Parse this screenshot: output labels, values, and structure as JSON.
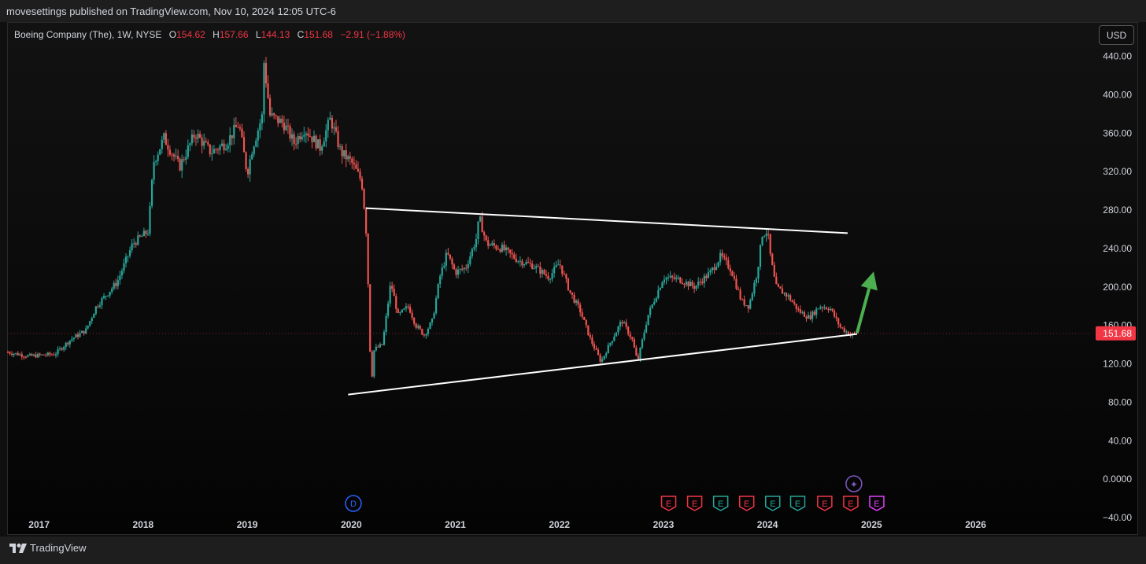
{
  "header": {
    "publish_text": "movesettings published on TradingView.com, Nov 10, 2024 12:05 UTC-6"
  },
  "legend": {
    "symbol": "Boeing Company (The), 1W, NYSE",
    "open_label": "O",
    "open": "154.62",
    "high_label": "H",
    "high": "157.66",
    "low_label": "L",
    "low": "144.13",
    "close_label": "C",
    "close": "151.68",
    "change": "−2.91 (−1.88%)"
  },
  "currency_button": "USD",
  "footer": {
    "brand": "TradingView"
  },
  "colors": {
    "up": "#26a69a",
    "down": "#ef5350",
    "trendline": "#ffffff",
    "arrow": "#4caf50",
    "price_tag": "#f23645"
  },
  "chart_data": {
    "type": "candlestick",
    "symbol": "BA",
    "interval": "1W",
    "last_price": 151.68,
    "last_price_label": "151.68",
    "y_axis": {
      "ticks": [
        440,
        400,
        360,
        320,
        280,
        240,
        200,
        160,
        120,
        80,
        40,
        0,
        -40
      ],
      "tick_labels": [
        "440.00",
        "400.00",
        "360.00",
        "320.00",
        "280.00",
        "240.00",
        "200.00",
        "160.00",
        "120.00",
        "80.00",
        "40.00",
        "0.0000",
        "−40.00"
      ],
      "range": [
        -58,
        474
      ]
    },
    "x_axis": {
      "ticks": [
        2017,
        2018,
        2019,
        2020,
        2021,
        2022,
        2023,
        2024,
        2025,
        2026
      ],
      "tick_labels": [
        "2017",
        "2018",
        "2019",
        "2020",
        "2021",
        "2022",
        "2023",
        "2024",
        "2025",
        "2026"
      ],
      "range": [
        2016.7,
        2027.1
      ]
    },
    "price_path": [
      [
        2016.7,
        132
      ],
      [
        2016.9,
        128
      ],
      [
        2017.15,
        130
      ],
      [
        2017.3,
        145
      ],
      [
        2017.45,
        155
      ],
      [
        2017.55,
        180
      ],
      [
        2017.75,
        205
      ],
      [
        2017.9,
        245
      ],
      [
        2018.05,
        258
      ],
      [
        2018.1,
        330
      ],
      [
        2018.2,
        355
      ],
      [
        2018.35,
        325
      ],
      [
        2018.5,
        360
      ],
      [
        2018.65,
        340
      ],
      [
        2018.8,
        350
      ],
      [
        2018.92,
        370
      ],
      [
        2019.0,
        318
      ],
      [
        2019.05,
        345
      ],
      [
        2019.15,
        380
      ],
      [
        2019.16,
        435
      ],
      [
        2019.22,
        378
      ],
      [
        2019.35,
        370
      ],
      [
        2019.45,
        350
      ],
      [
        2019.55,
        365
      ],
      [
        2019.7,
        345
      ],
      [
        2019.8,
        375
      ],
      [
        2019.9,
        340
      ],
      [
        2020.0,
        330
      ],
      [
        2020.1,
        310
      ],
      [
        2020.14,
        265
      ],
      [
        2020.17,
        180
      ],
      [
        2020.19,
        95
      ],
      [
        2020.22,
        135
      ],
      [
        2020.3,
        140
      ],
      [
        2020.38,
        205
      ],
      [
        2020.45,
        170
      ],
      [
        2020.55,
        180
      ],
      [
        2020.62,
        160
      ],
      [
        2020.7,
        150
      ],
      [
        2020.78,
        165
      ],
      [
        2020.85,
        210
      ],
      [
        2020.92,
        235
      ],
      [
        2021.0,
        215
      ],
      [
        2021.1,
        220
      ],
      [
        2021.2,
        250
      ],
      [
        2021.23,
        272
      ],
      [
        2021.3,
        245
      ],
      [
        2021.45,
        240
      ],
      [
        2021.6,
        228
      ],
      [
        2021.75,
        222
      ],
      [
        2021.9,
        210
      ],
      [
        2022.0,
        225
      ],
      [
        2022.1,
        195
      ],
      [
        2022.2,
        175
      ],
      [
        2022.3,
        145
      ],
      [
        2022.4,
        122
      ],
      [
        2022.48,
        140
      ],
      [
        2022.6,
        165
      ],
      [
        2022.7,
        145
      ],
      [
        2022.75,
        122
      ],
      [
        2022.85,
        170
      ],
      [
        2023.0,
        210
      ],
      [
        2023.15,
        208
      ],
      [
        2023.3,
        200
      ],
      [
        2023.45,
        215
      ],
      [
        2023.55,
        232
      ],
      [
        2023.65,
        218
      ],
      [
        2023.75,
        185
      ],
      [
        2023.82,
        180
      ],
      [
        2023.9,
        215
      ],
      [
        2023.95,
        255
      ],
      [
        2024.0,
        258
      ],
      [
        2024.03,
        230
      ],
      [
        2024.08,
        200
      ],
      [
        2024.2,
        190
      ],
      [
        2024.3,
        175
      ],
      [
        2024.4,
        168
      ],
      [
        2024.5,
        180
      ],
      [
        2024.6,
        178
      ],
      [
        2024.7,
        158
      ],
      [
        2024.8,
        150
      ],
      [
        2024.86,
        151.68
      ]
    ],
    "trendlines": [
      {
        "name": "upper",
        "from": [
          2020.14,
          282
        ],
        "to": [
          2024.77,
          256
        ]
      },
      {
        "name": "lower",
        "from": [
          2019.97,
          88
        ],
        "to": [
          2024.86,
          151
        ]
      }
    ],
    "arrow": {
      "from": [
        2024.86,
        152
      ],
      "to": [
        2025.02,
        216
      ]
    },
    "events": [
      {
        "type": "dividend",
        "label": "D",
        "x": 2020.02,
        "color": "#2962ff"
      },
      {
        "type": "earnings",
        "label": "E",
        "x": 2023.05,
        "color": "#f23645"
      },
      {
        "type": "earnings",
        "label": "E",
        "x": 2023.3,
        "color": "#f23645"
      },
      {
        "type": "earnings",
        "label": "E",
        "x": 2023.55,
        "color": "#26a69a"
      },
      {
        "type": "earnings",
        "label": "E",
        "x": 2023.8,
        "color": "#f23645"
      },
      {
        "type": "earnings",
        "label": "E",
        "x": 2024.05,
        "color": "#26a69a"
      },
      {
        "type": "earnings",
        "label": "E",
        "x": 2024.29,
        "color": "#26a69a"
      },
      {
        "type": "earnings",
        "label": "E",
        "x": 2024.55,
        "color": "#f23645"
      },
      {
        "type": "earnings",
        "label": "E",
        "x": 2024.8,
        "color": "#f23645"
      },
      {
        "type": "earnings",
        "label": "E",
        "x": 2025.05,
        "color": "#e040fb"
      },
      {
        "type": "other",
        "label": "✦",
        "x": 2024.83,
        "color": "#7e57c2",
        "row": 2
      }
    ]
  }
}
